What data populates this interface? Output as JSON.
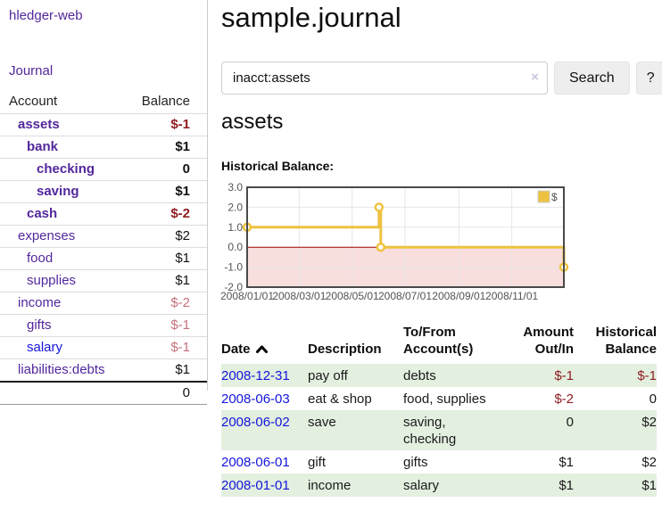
{
  "brand": "hledger-web",
  "sidebar": {
    "journal_link": "Journal",
    "accounts_header": {
      "account": "Account",
      "balance": "Balance"
    },
    "accounts": [
      {
        "name": "assets",
        "balance": "$-1",
        "depth": 1,
        "emphasized": true,
        "negative": true
      },
      {
        "name": "bank",
        "balance": "$1",
        "depth": 2,
        "emphasized": true
      },
      {
        "name": "checking",
        "balance": "0",
        "depth": 3,
        "emphasized": true
      },
      {
        "name": "saving",
        "balance": "$1",
        "depth": 3,
        "emphasized": true
      },
      {
        "name": "cash",
        "balance": "$-2",
        "depth": 2,
        "emphasized": true,
        "negative": true
      },
      {
        "name": "expenses",
        "balance": "$2",
        "depth": 1
      },
      {
        "name": "food",
        "balance": "$1",
        "depth": 2
      },
      {
        "name": "supplies",
        "balance": "$1",
        "depth": 2
      },
      {
        "name": "income",
        "balance": "$-2",
        "depth": 1,
        "negative": true
      },
      {
        "name": "gifts",
        "balance": "$-1",
        "depth": 2,
        "negative": true
      },
      {
        "name": "salary",
        "balance": "$-1",
        "depth": 2,
        "negative": true,
        "unvisited": true
      },
      {
        "name": "liabilities:debts",
        "balance": "$1",
        "depth": 1
      }
    ],
    "total": "0"
  },
  "main": {
    "title": "sample.journal",
    "search": {
      "value": "inacct:assets",
      "clear_icon": "×",
      "button": "Search",
      "help_button": "?"
    },
    "account_heading": "assets",
    "chart_label": "Historical Balance:"
  },
  "chart_data": {
    "type": "line",
    "step": true,
    "title": "Historical Balance",
    "xrange": [
      "2008-01-01",
      "2008-12-31"
    ],
    "ylim": [
      -2.0,
      3.0
    ],
    "yticks": [
      "3.0",
      "2.0",
      "1.0",
      "0.0",
      "-1.0",
      "-2.0"
    ],
    "xticks": [
      "2008/01/01",
      "2008/03/01",
      "2008/05/01",
      "2008/07/01",
      "2008/09/01",
      "2008/11/01"
    ],
    "grid": true,
    "legend_position": "top-right",
    "series": [
      {
        "name": "$",
        "color": "#edc240",
        "points": [
          [
            "2008-01-01",
            1.0
          ],
          [
            "2008-06-01",
            2.0
          ],
          [
            "2008-06-03",
            0.0
          ],
          [
            "2008-12-31",
            -1.0
          ]
        ]
      }
    ],
    "colors": {
      "negative_region": "#f9dede",
      "zero_line": "#a00000",
      "gridline": "#e6e6e6",
      "border": "#4a4a4a"
    }
  },
  "register": {
    "columns": {
      "date": "Date",
      "description": "Description",
      "accounts": "To/From Account(s)",
      "amount": "Amount Out/In",
      "balance": "Historical Balance"
    },
    "rows": [
      {
        "date": "2008-12-31",
        "description": "pay off",
        "accounts": "debts",
        "amount": "$-1",
        "balance": "$-1",
        "amount_negative": true,
        "balance_negative": true
      },
      {
        "date": "2008-06-03",
        "description": "eat & shop",
        "accounts": "food, supplies",
        "amount": "$-2",
        "balance": "0",
        "amount_negative": true
      },
      {
        "date": "2008-06-02",
        "description": "save",
        "accounts": "saving,\nchecking",
        "amount": "0",
        "balance": "$2"
      },
      {
        "date": "2008-06-01",
        "description": "gift",
        "accounts": "gifts",
        "amount": "$1",
        "balance": "$2"
      },
      {
        "date": "2008-01-01",
        "description": "income",
        "accounts": "salary",
        "amount": "$1",
        "balance": "$1"
      }
    ]
  },
  "colors": {
    "link_purple": "#52279c",
    "link_blue": "#1515dd",
    "negative_strong": "#8f1d21",
    "negative_muted": "#c4717b",
    "row_shade_green": "#e3efdf",
    "series_gold": "#edc240"
  }
}
